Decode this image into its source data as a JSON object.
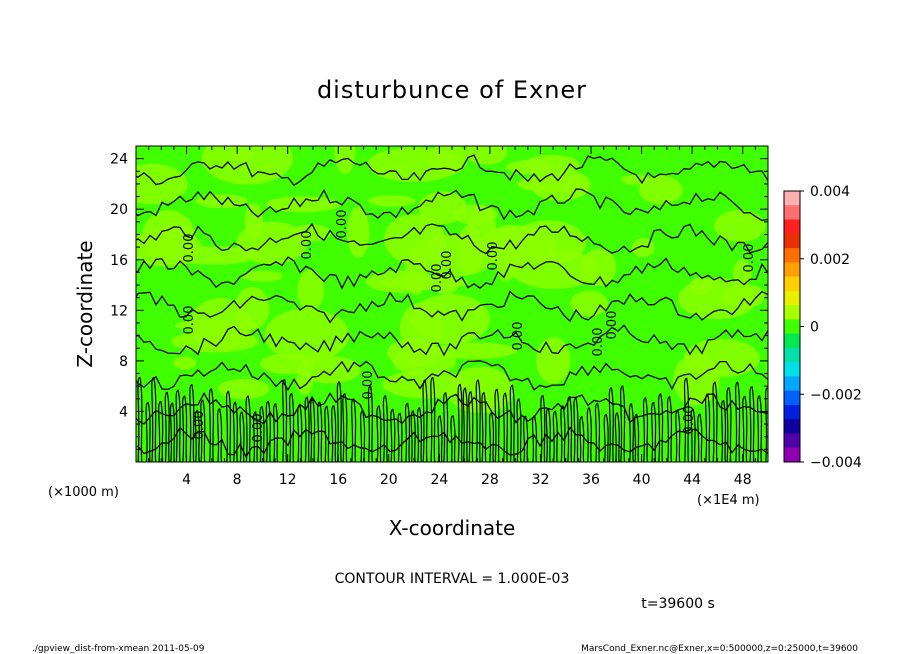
{
  "chart_data": {
    "type": "heatmap",
    "title": "disturbunce of Exner",
    "xlabel": "X-coordinate",
    "ylabel": "Z-coordinate",
    "x_unit_left": "(×1000 m)",
    "x_unit_right": "(×1E4 m)",
    "x_ticks": [
      4,
      8,
      12,
      16,
      20,
      24,
      28,
      32,
      36,
      40,
      44,
      48
    ],
    "y_ticks": [
      4,
      8,
      12,
      16,
      20,
      24
    ],
    "xlim": [
      0,
      50
    ],
    "ylim": [
      0,
      25
    ],
    "contour_labels": [
      "0.00"
    ],
    "contour_interval": "CONTOUR INTERVAL = 1.000E-03",
    "colorbar": {
      "ticks": [
        "0.004",
        "0.002",
        "0",
        "−0.002",
        "−0.004"
      ],
      "tick_values": [
        0.004,
        0.002,
        0,
        -0.002,
        -0.004
      ],
      "range": [
        -0.004,
        0.004
      ],
      "colors": [
        "#ffb0b0",
        "#ff7070",
        "#ff2020",
        "#e83000",
        "#ff7000",
        "#ffa000",
        "#ffd000",
        "#e8f000",
        "#a8ff00",
        "#40ff00",
        "#00e850",
        "#00e0a8",
        "#00e0e8",
        "#00a8ff",
        "#0060ff",
        "#0020e0",
        "#1000a0",
        "#5000a8",
        "#9000b0"
      ]
    },
    "field_colors": {
      "base": "#40ff00",
      "light": "#8cff00"
    }
  },
  "footer": {
    "time_label": "t=39600 s",
    "script_name": "./gpview_dist-from-xmean  2011-05-09",
    "file_info": "MarsCond_Exner.nc@Exner,x=0:500000,z=0:25000,t=39600"
  }
}
